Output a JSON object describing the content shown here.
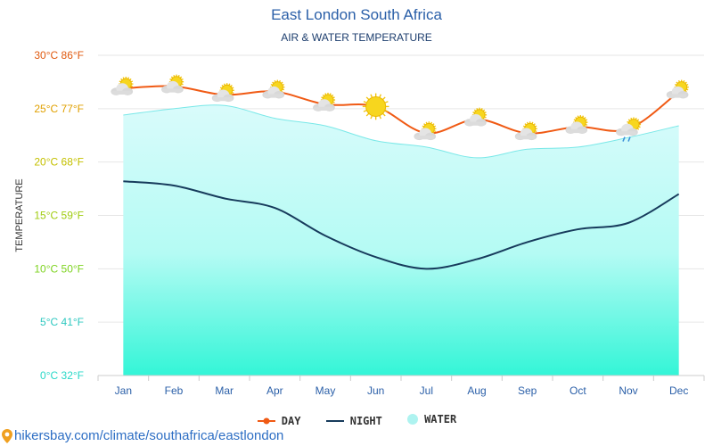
{
  "header": {
    "title": "East London South Africa",
    "subtitle": "AIR & WATER TEMPERATURE"
  },
  "legend": {
    "day": "DAY",
    "night": "NIGHT",
    "water": "WATER"
  },
  "footer": {
    "url": "hikersbay.com/climate/southafrica/eastlondon"
  },
  "colors": {
    "day": "#f05a14",
    "night": "#173b5c",
    "water_top": "#d9fbfb",
    "water_bottom": "#33f5d7",
    "water_line": "#7ae8e8",
    "title": "#2a5fa8"
  },
  "chart_data": {
    "type": "line",
    "title": "East London South Africa",
    "subtitle": "AIR & WATER TEMPERATURE",
    "ylabel": "TEMPERATURE",
    "ylim": [
      0,
      30
    ],
    "grid": true,
    "legend_position": "bottom",
    "categories": [
      "Jan",
      "Feb",
      "Mar",
      "Apr",
      "May",
      "Jun",
      "Jul",
      "Aug",
      "Sep",
      "Oct",
      "Nov",
      "Dec"
    ],
    "y_ticks": [
      {
        "value": 0,
        "label": "0°C 32°F",
        "color": "#2ad8c8"
      },
      {
        "value": 5,
        "label": "5°C 41°F",
        "color": "#2ec8c0"
      },
      {
        "value": 10,
        "label": "10°C 50°F",
        "color": "#7ed321"
      },
      {
        "value": 15,
        "label": "15°C 59°F",
        "color": "#a0cc10"
      },
      {
        "value": 20,
        "label": "20°C 68°F",
        "color": "#c4c000"
      },
      {
        "value": 25,
        "label": "25°C 77°F",
        "color": "#e0a000"
      },
      {
        "value": 30,
        "label": "30°C 86°F",
        "color": "#e05a10"
      }
    ],
    "series": [
      {
        "name": "DAY",
        "values": [
          26.9,
          27.1,
          26.3,
          26.6,
          25.4,
          25.2,
          22.7,
          24.0,
          22.7,
          23.3,
          23.1,
          26.6
        ]
      },
      {
        "name": "NIGHT",
        "values": [
          18.2,
          17.8,
          16.6,
          15.7,
          13.1,
          11.1,
          10.0,
          10.9,
          12.5,
          13.7,
          14.3,
          17.0
        ]
      },
      {
        "name": "WATER",
        "values": [
          24.4,
          25.0,
          25.3,
          24.1,
          23.4,
          22.0,
          21.4,
          20.4,
          21.2,
          21.4,
          22.3,
          23.4
        ]
      }
    ],
    "day_weather_icons": [
      "partly-cloudy-icon",
      "partly-cloudy-icon",
      "partly-cloudy-icon",
      "partly-cloudy-icon",
      "partly-cloudy-icon",
      "sun-icon",
      "partly-cloudy-icon",
      "partly-cloudy-icon",
      "partly-cloudy-icon",
      "partly-cloudy-icon",
      "rain-cloud-icon",
      "partly-cloudy-icon"
    ]
  }
}
